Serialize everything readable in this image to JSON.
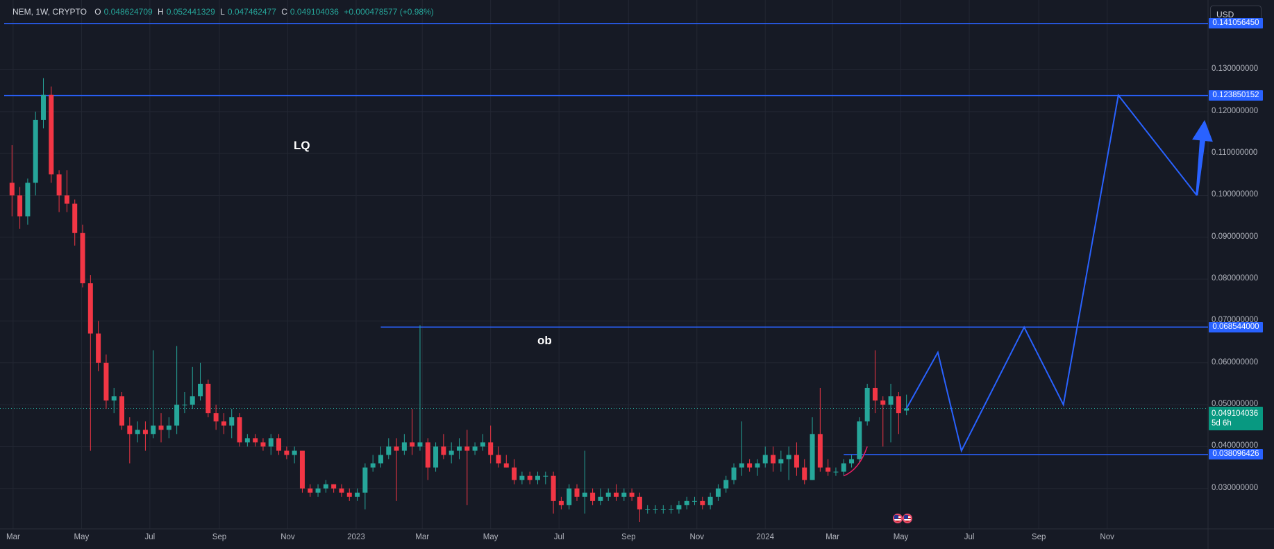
{
  "header": {
    "symbol": "NEM, 1W, CRYPTO",
    "open_key": "O",
    "open": "0.048624709",
    "high_key": "H",
    "high": "0.052441329",
    "low_key": "L",
    "low": "0.047462477",
    "close_key": "C",
    "close": "0.049104036",
    "change": "+0.000478577 (+0.98%)"
  },
  "currency": "USD",
  "price_axis": {
    "ticks": [
      "0.130000000",
      "0.120000000",
      "0.110000000",
      "0.100000000",
      "0.090000000",
      "0.080000000",
      "0.070000000",
      "0.060000000",
      "0.050000000",
      "0.040000000",
      "0.030000000"
    ],
    "badges": [
      "0.141056450",
      "0.123850152",
      "0.068544000",
      "0.038096426"
    ],
    "current_price": "0.049104036",
    "countdown": "5d 6h"
  },
  "time_axis": [
    "Mar",
    "May",
    "Jul",
    "Sep",
    "Nov",
    "2023",
    "Mar",
    "May",
    "Jul",
    "Sep",
    "Nov",
    "2024",
    "Mar",
    "May",
    "Jul",
    "Sep",
    "Nov"
  ],
  "annotations": {
    "lq": "LQ",
    "ob": "ob"
  },
  "colors": {
    "background": "#161a25",
    "up": "#26a69a",
    "down": "#f23645",
    "drawing": "#2962ff",
    "grid": "#232733"
  },
  "chart_data": {
    "type": "candlestick",
    "timeframe": "1W",
    "ylim": [
      0.022,
      0.145
    ],
    "xlim": [
      "2022-02-21",
      "2024-12-09"
    ],
    "candles": [
      {
        "date": "2022-02-28",
        "o": 0.103,
        "h": 0.112,
        "l": 0.095,
        "c": 0.1
      },
      {
        "date": "2022-03-07",
        "o": 0.1,
        "h": 0.102,
        "l": 0.092,
        "c": 0.095
      },
      {
        "date": "2022-03-14",
        "o": 0.095,
        "h": 0.104,
        "l": 0.093,
        "c": 0.103
      },
      {
        "date": "2022-03-21",
        "o": 0.103,
        "h": 0.12,
        "l": 0.1,
        "c": 0.118
      },
      {
        "date": "2022-03-28",
        "o": 0.118,
        "h": 0.128,
        "l": 0.116,
        "c": 0.124
      },
      {
        "date": "2022-04-04",
        "o": 0.124,
        "h": 0.126,
        "l": 0.103,
        "c": 0.105
      },
      {
        "date": "2022-04-11",
        "o": 0.105,
        "h": 0.106,
        "l": 0.096,
        "c": 0.1
      },
      {
        "date": "2022-04-18",
        "o": 0.1,
        "h": 0.106,
        "l": 0.096,
        "c": 0.098
      },
      {
        "date": "2022-04-25",
        "o": 0.098,
        "h": 0.099,
        "l": 0.088,
        "c": 0.091
      },
      {
        "date": "2022-05-02",
        "o": 0.091,
        "h": 0.093,
        "l": 0.078,
        "c": 0.079
      },
      {
        "date": "2022-05-09",
        "o": 0.079,
        "h": 0.081,
        "l": 0.039,
        "c": 0.067
      },
      {
        "date": "2022-05-16",
        "o": 0.067,
        "h": 0.07,
        "l": 0.058,
        "c": 0.06
      },
      {
        "date": "2022-05-23",
        "o": 0.06,
        "h": 0.062,
        "l": 0.049,
        "c": 0.051
      },
      {
        "date": "2022-05-30",
        "o": 0.051,
        "h": 0.054,
        "l": 0.048,
        "c": 0.052
      },
      {
        "date": "2022-06-06",
        "o": 0.052,
        "h": 0.053,
        "l": 0.044,
        "c": 0.045
      },
      {
        "date": "2022-06-13",
        "o": 0.045,
        "h": 0.047,
        "l": 0.036,
        "c": 0.043
      },
      {
        "date": "2022-06-20",
        "o": 0.043,
        "h": 0.046,
        "l": 0.041,
        "c": 0.044
      },
      {
        "date": "2022-06-27",
        "o": 0.044,
        "h": 0.046,
        "l": 0.039,
        "c": 0.043
      },
      {
        "date": "2022-07-04",
        "o": 0.043,
        "h": 0.063,
        "l": 0.042,
        "c": 0.045
      },
      {
        "date": "2022-07-11",
        "o": 0.045,
        "h": 0.048,
        "l": 0.041,
        "c": 0.044
      },
      {
        "date": "2022-07-18",
        "o": 0.044,
        "h": 0.047,
        "l": 0.042,
        "c": 0.045
      },
      {
        "date": "2022-07-25",
        "o": 0.045,
        "h": 0.064,
        "l": 0.043,
        "c": 0.05
      },
      {
        "date": "2022-08-01",
        "o": 0.05,
        "h": 0.053,
        "l": 0.048,
        "c": 0.05
      },
      {
        "date": "2022-08-08",
        "o": 0.05,
        "h": 0.059,
        "l": 0.049,
        "c": 0.052
      },
      {
        "date": "2022-08-15",
        "o": 0.052,
        "h": 0.06,
        "l": 0.051,
        "c": 0.055
      },
      {
        "date": "2022-08-22",
        "o": 0.055,
        "h": 0.056,
        "l": 0.047,
        "c": 0.048
      },
      {
        "date": "2022-08-29",
        "o": 0.048,
        "h": 0.05,
        "l": 0.044,
        "c": 0.046
      },
      {
        "date": "2022-09-05",
        "o": 0.046,
        "h": 0.048,
        "l": 0.043,
        "c": 0.045
      },
      {
        "date": "2022-09-12",
        "o": 0.045,
        "h": 0.049,
        "l": 0.042,
        "c": 0.047
      },
      {
        "date": "2022-09-19",
        "o": 0.047,
        "h": 0.048,
        "l": 0.04,
        "c": 0.041
      },
      {
        "date": "2022-09-26",
        "o": 0.041,
        "h": 0.043,
        "l": 0.04,
        "c": 0.042
      },
      {
        "date": "2022-10-03",
        "o": 0.042,
        "h": 0.043,
        "l": 0.04,
        "c": 0.041
      },
      {
        "date": "2022-10-10",
        "o": 0.041,
        "h": 0.042,
        "l": 0.039,
        "c": 0.04
      },
      {
        "date": "2022-10-17",
        "o": 0.04,
        "h": 0.043,
        "l": 0.038,
        "c": 0.042
      },
      {
        "date": "2022-10-24",
        "o": 0.042,
        "h": 0.043,
        "l": 0.038,
        "c": 0.039
      },
      {
        "date": "2022-10-31",
        "o": 0.039,
        "h": 0.04,
        "l": 0.037,
        "c": 0.038
      },
      {
        "date": "2022-11-07",
        "o": 0.038,
        "h": 0.04,
        "l": 0.036,
        "c": 0.039
      },
      {
        "date": "2022-11-14",
        "o": 0.039,
        "h": 0.039,
        "l": 0.029,
        "c": 0.03
      },
      {
        "date": "2022-11-21",
        "o": 0.03,
        "h": 0.031,
        "l": 0.028,
        "c": 0.029
      },
      {
        "date": "2022-11-28",
        "o": 0.029,
        "h": 0.031,
        "l": 0.028,
        "c": 0.03
      },
      {
        "date": "2022-12-05",
        "o": 0.03,
        "h": 0.032,
        "l": 0.029,
        "c": 0.031
      },
      {
        "date": "2022-12-12",
        "o": 0.031,
        "h": 0.031,
        "l": 0.029,
        "c": 0.03
      },
      {
        "date": "2022-12-19",
        "o": 0.03,
        "h": 0.031,
        "l": 0.028,
        "c": 0.029
      },
      {
        "date": "2022-12-26",
        "o": 0.029,
        "h": 0.03,
        "l": 0.027,
        "c": 0.028
      },
      {
        "date": "2023-01-02",
        "o": 0.028,
        "h": 0.03,
        "l": 0.027,
        "c": 0.029
      },
      {
        "date": "2023-01-09",
        "o": 0.029,
        "h": 0.036,
        "l": 0.025,
        "c": 0.035
      },
      {
        "date": "2023-01-16",
        "o": 0.035,
        "h": 0.038,
        "l": 0.034,
        "c": 0.036
      },
      {
        "date": "2023-01-23",
        "o": 0.036,
        "h": 0.04,
        "l": 0.035,
        "c": 0.038
      },
      {
        "date": "2023-01-30",
        "o": 0.038,
        "h": 0.042,
        "l": 0.037,
        "c": 0.04
      },
      {
        "date": "2023-02-06",
        "o": 0.04,
        "h": 0.042,
        "l": 0.027,
        "c": 0.039
      },
      {
        "date": "2023-02-13",
        "o": 0.039,
        "h": 0.043,
        "l": 0.038,
        "c": 0.041
      },
      {
        "date": "2023-02-20",
        "o": 0.041,
        "h": 0.049,
        "l": 0.038,
        "c": 0.04
      },
      {
        "date": "2023-02-27",
        "o": 0.04,
        "h": 0.069,
        "l": 0.039,
        "c": 0.041
      },
      {
        "date": "2023-03-06",
        "o": 0.041,
        "h": 0.042,
        "l": 0.032,
        "c": 0.035
      },
      {
        "date": "2023-03-13",
        "o": 0.035,
        "h": 0.041,
        "l": 0.034,
        "c": 0.04
      },
      {
        "date": "2023-03-20",
        "o": 0.04,
        "h": 0.043,
        "l": 0.037,
        "c": 0.038
      },
      {
        "date": "2023-03-27",
        "o": 0.038,
        "h": 0.041,
        "l": 0.036,
        "c": 0.039
      },
      {
        "date": "2023-04-03",
        "o": 0.039,
        "h": 0.042,
        "l": 0.037,
        "c": 0.04
      },
      {
        "date": "2023-04-10",
        "o": 0.04,
        "h": 0.044,
        "l": 0.026,
        "c": 0.039
      },
      {
        "date": "2023-04-17",
        "o": 0.039,
        "h": 0.041,
        "l": 0.038,
        "c": 0.04
      },
      {
        "date": "2023-04-24",
        "o": 0.04,
        "h": 0.043,
        "l": 0.039,
        "c": 0.041
      },
      {
        "date": "2023-05-01",
        "o": 0.041,
        "h": 0.045,
        "l": 0.036,
        "c": 0.038
      },
      {
        "date": "2023-05-08",
        "o": 0.038,
        "h": 0.04,
        "l": 0.035,
        "c": 0.036
      },
      {
        "date": "2023-05-15",
        "o": 0.036,
        "h": 0.038,
        "l": 0.035,
        "c": 0.035
      },
      {
        "date": "2023-05-22",
        "o": 0.035,
        "h": 0.037,
        "l": 0.031,
        "c": 0.032
      },
      {
        "date": "2023-05-29",
        "o": 0.032,
        "h": 0.034,
        "l": 0.031,
        "c": 0.033
      },
      {
        "date": "2023-06-05",
        "o": 0.033,
        "h": 0.034,
        "l": 0.031,
        "c": 0.032
      },
      {
        "date": "2023-06-12",
        "o": 0.032,
        "h": 0.034,
        "l": 0.031,
        "c": 0.033
      },
      {
        "date": "2023-06-19",
        "o": 0.033,
        "h": 0.034,
        "l": 0.031,
        "c": 0.033
      },
      {
        "date": "2023-06-26",
        "o": 0.033,
        "h": 0.034,
        "l": 0.024,
        "c": 0.027
      },
      {
        "date": "2023-07-03",
        "o": 0.027,
        "h": 0.028,
        "l": 0.025,
        "c": 0.026
      },
      {
        "date": "2023-07-10",
        "o": 0.026,
        "h": 0.031,
        "l": 0.025,
        "c": 0.03
      },
      {
        "date": "2023-07-17",
        "o": 0.03,
        "h": 0.031,
        "l": 0.027,
        "c": 0.028
      },
      {
        "date": "2023-07-24",
        "o": 0.028,
        "h": 0.039,
        "l": 0.024,
        "c": 0.029
      },
      {
        "date": "2023-07-31",
        "o": 0.029,
        "h": 0.03,
        "l": 0.026,
        "c": 0.027
      },
      {
        "date": "2023-08-07",
        "o": 0.027,
        "h": 0.03,
        "l": 0.026,
        "c": 0.028
      },
      {
        "date": "2023-08-14",
        "o": 0.028,
        "h": 0.03,
        "l": 0.027,
        "c": 0.029
      },
      {
        "date": "2023-08-21",
        "o": 0.029,
        "h": 0.031,
        "l": 0.027,
        "c": 0.028
      },
      {
        "date": "2023-08-28",
        "o": 0.028,
        "h": 0.03,
        "l": 0.027,
        "c": 0.029
      },
      {
        "date": "2023-09-04",
        "o": 0.029,
        "h": 0.03,
        "l": 0.027,
        "c": 0.028
      },
      {
        "date": "2023-09-11",
        "o": 0.028,
        "h": 0.029,
        "l": 0.022,
        "c": 0.025
      },
      {
        "date": "2023-09-18",
        "o": 0.025,
        "h": 0.026,
        "l": 0.024,
        "c": 0.025
      },
      {
        "date": "2023-09-25",
        "o": 0.025,
        "h": 0.026,
        "l": 0.024,
        "c": 0.025
      },
      {
        "date": "2023-10-02",
        "o": 0.025,
        "h": 0.026,
        "l": 0.024,
        "c": 0.025
      },
      {
        "date": "2023-10-09",
        "o": 0.025,
        "h": 0.026,
        "l": 0.024,
        "c": 0.025
      },
      {
        "date": "2023-10-16",
        "o": 0.025,
        "h": 0.027,
        "l": 0.024,
        "c": 0.026
      },
      {
        "date": "2023-10-23",
        "o": 0.026,
        "h": 0.028,
        "l": 0.025,
        "c": 0.027
      },
      {
        "date": "2023-10-30",
        "o": 0.027,
        "h": 0.028,
        "l": 0.026,
        "c": 0.027
      },
      {
        "date": "2023-11-06",
        "o": 0.027,
        "h": 0.028,
        "l": 0.025,
        "c": 0.026
      },
      {
        "date": "2023-11-13",
        "o": 0.026,
        "h": 0.029,
        "l": 0.025,
        "c": 0.028
      },
      {
        "date": "2023-11-20",
        "o": 0.028,
        "h": 0.031,
        "l": 0.027,
        "c": 0.03
      },
      {
        "date": "2023-11-27",
        "o": 0.03,
        "h": 0.033,
        "l": 0.029,
        "c": 0.032
      },
      {
        "date": "2023-12-04",
        "o": 0.032,
        "h": 0.036,
        "l": 0.031,
        "c": 0.035
      },
      {
        "date": "2023-12-11",
        "o": 0.035,
        "h": 0.046,
        "l": 0.033,
        "c": 0.036
      },
      {
        "date": "2023-12-18",
        "o": 0.036,
        "h": 0.037,
        "l": 0.034,
        "c": 0.035
      },
      {
        "date": "2023-12-25",
        "o": 0.035,
        "h": 0.037,
        "l": 0.033,
        "c": 0.036
      },
      {
        "date": "2024-01-01",
        "o": 0.036,
        "h": 0.04,
        "l": 0.035,
        "c": 0.038
      },
      {
        "date": "2024-01-08",
        "o": 0.038,
        "h": 0.04,
        "l": 0.034,
        "c": 0.036
      },
      {
        "date": "2024-01-15",
        "o": 0.036,
        "h": 0.039,
        "l": 0.034,
        "c": 0.037
      },
      {
        "date": "2024-01-22",
        "o": 0.037,
        "h": 0.04,
        "l": 0.032,
        "c": 0.038
      },
      {
        "date": "2024-01-29",
        "o": 0.038,
        "h": 0.041,
        "l": 0.033,
        "c": 0.035
      },
      {
        "date": "2024-02-05",
        "o": 0.035,
        "h": 0.037,
        "l": 0.031,
        "c": 0.032
      },
      {
        "date": "2024-02-12",
        "o": 0.032,
        "h": 0.047,
        "l": 0.032,
        "c": 0.043
      },
      {
        "date": "2024-02-19",
        "o": 0.043,
        "h": 0.054,
        "l": 0.034,
        "c": 0.035
      },
      {
        "date": "2024-02-26",
        "o": 0.035,
        "h": 0.037,
        "l": 0.033,
        "c": 0.034
      },
      {
        "date": "2024-03-04",
        "o": 0.034,
        "h": 0.035,
        "l": 0.033,
        "c": 0.034
      },
      {
        "date": "2024-03-11",
        "o": 0.034,
        "h": 0.037,
        "l": 0.033,
        "c": 0.036
      },
      {
        "date": "2024-03-18",
        "o": 0.036,
        "h": 0.038,
        "l": 0.035,
        "c": 0.037
      },
      {
        "date": "2024-03-25",
        "o": 0.037,
        "h": 0.047,
        "l": 0.036,
        "c": 0.046
      },
      {
        "date": "2024-04-01",
        "o": 0.046,
        "h": 0.055,
        "l": 0.045,
        "c": 0.054
      },
      {
        "date": "2024-04-08",
        "o": 0.054,
        "h": 0.063,
        "l": 0.048,
        "c": 0.051
      },
      {
        "date": "2024-04-15",
        "o": 0.051,
        "h": 0.052,
        "l": 0.04,
        "c": 0.05
      },
      {
        "date": "2024-04-22",
        "o": 0.05,
        "h": 0.055,
        "l": 0.041,
        "c": 0.052
      },
      {
        "date": "2024-04-29",
        "o": 0.052,
        "h": 0.053,
        "l": 0.043,
        "c": 0.048
      },
      {
        "date": "2024-05-06",
        "o": 0.0486,
        "h": 0.0524,
        "l": 0.0475,
        "c": 0.0491
      }
    ],
    "horizontal_levels": [
      {
        "price": 0.14105645,
        "from": "2022-02-21"
      },
      {
        "price": 0.123850152,
        "from": "2022-02-21"
      },
      {
        "price": 0.068544,
        "from": "2023-01-23"
      },
      {
        "price": 0.038096426,
        "from": "2024-03-11"
      }
    ],
    "current_price": 0.049104036,
    "projection_path": [
      {
        "date": "2024-05-06",
        "price": 0.0491
      },
      {
        "date": "2024-06-03",
        "price": 0.0625
      },
      {
        "date": "2024-06-24",
        "price": 0.039
      },
      {
        "date": "2024-08-19",
        "price": 0.0685
      },
      {
        "date": "2024-09-23",
        "price": 0.05
      },
      {
        "date": "2024-11-11",
        "price": 0.1239
      },
      {
        "date": "2025-01-20",
        "price": 0.1
      }
    ],
    "arrow": {
      "from": {
        "date": "2025-01-20",
        "price": 0.1
      },
      "to": {
        "date": "2025-01-27",
        "price": 0.118
      }
    },
    "curve": [
      {
        "date": "2024-03-11",
        "price": 0.033
      },
      {
        "date": "2024-03-25",
        "price": 0.0345
      },
      {
        "date": "2024-04-01",
        "price": 0.04
      }
    ]
  }
}
